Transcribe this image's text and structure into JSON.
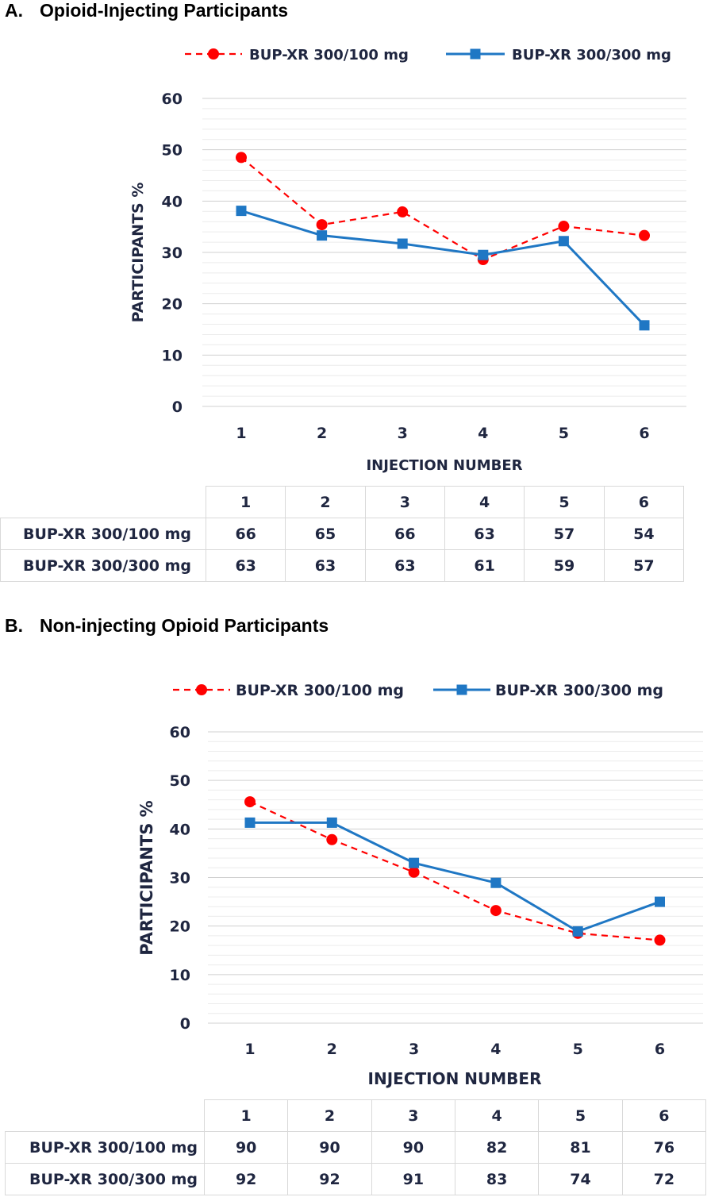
{
  "panels": [
    {
      "title_letter": "A.",
      "title_text": "Opioid-Injecting Participants",
      "table": {
        "header": [
          "1",
          "2",
          "3",
          "4",
          "5",
          "6"
        ],
        "rows": [
          {
            "label": "BUP-XR 300/100 mg",
            "values": [
              "66",
              "65",
              "66",
              "63",
              "57",
              "54"
            ]
          },
          {
            "label": "BUP-XR 300/300 mg",
            "values": [
              "63",
              "63",
              "63",
              "61",
              "59",
              "57"
            ]
          }
        ]
      }
    },
    {
      "title_letter": "B.",
      "title_text": "Non-injecting Opioid Participants",
      "table": {
        "header": [
          "1",
          "2",
          "3",
          "4",
          "5",
          "6"
        ],
        "rows": [
          {
            "label": "BUP-XR 300/100 mg",
            "values": [
              "90",
              "90",
              "90",
              "82",
              "81",
              "76"
            ]
          },
          {
            "label": "BUP-XR 300/300 mg",
            "values": [
              "92",
              "92",
              "91",
              "83",
              "74",
              "72"
            ]
          }
        ]
      }
    }
  ],
  "chart_data": [
    {
      "type": "line",
      "title": "Opioid-Injecting Participants",
      "xlabel": "INJECTION NUMBER",
      "ylabel": "PARTICIPANTS %",
      "x": [
        1,
        2,
        3,
        4,
        5,
        6
      ],
      "x_tick_labels": [
        "1",
        "2",
        "3",
        "4",
        "5",
        "6"
      ],
      "y_tick_labels": [
        "0",
        "10",
        "20",
        "30",
        "40",
        "50",
        "60"
      ],
      "ylim": [
        0,
        60
      ],
      "grid": true,
      "legend_position": "top",
      "series": [
        {
          "name": "BUP-XR 300/100 mg",
          "values": [
            48.5,
            35.4,
            37.9,
            28.6,
            35.1,
            33.3
          ],
          "color": "#ff0000",
          "style": "dashed",
          "marker": "circle"
        },
        {
          "name": "BUP-XR 300/300 mg",
          "values": [
            38.1,
            33.3,
            31.7,
            29.5,
            32.2,
            15.8
          ],
          "color": "#1f77c4",
          "style": "solid",
          "marker": "square"
        }
      ]
    },
    {
      "type": "line",
      "title": "Non-injecting Opioid Participants",
      "xlabel": "INJECTION NUMBER",
      "ylabel": "PARTICIPANTS %",
      "x": [
        1,
        2,
        3,
        4,
        5,
        6
      ],
      "x_tick_labels": [
        "1",
        "2",
        "3",
        "4",
        "5",
        "6"
      ],
      "y_tick_labels": [
        "0",
        "10",
        "20",
        "30",
        "40",
        "50",
        "60"
      ],
      "ylim": [
        0,
        60
      ],
      "grid": true,
      "legend_position": "top",
      "series": [
        {
          "name": "BUP-XR 300/100 mg",
          "values": [
            45.6,
            37.8,
            31.1,
            23.2,
            18.5,
            17.1
          ],
          "color": "#ff0000",
          "style": "dashed",
          "marker": "circle"
        },
        {
          "name": "BUP-XR 300/300 mg",
          "values": [
            41.3,
            41.3,
            33.0,
            28.9,
            18.9,
            25.0
          ],
          "color": "#1f77c4",
          "style": "solid",
          "marker": "square"
        }
      ]
    }
  ]
}
